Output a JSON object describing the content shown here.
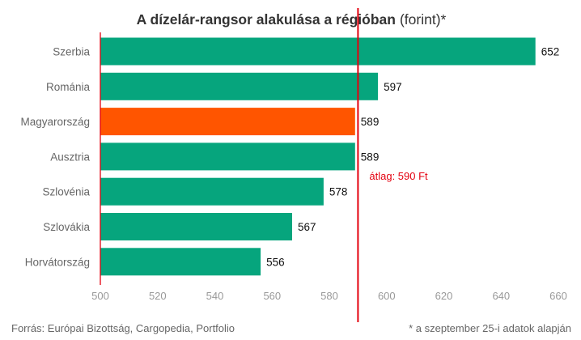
{
  "chart_data": {
    "type": "bar",
    "orientation": "horizontal",
    "title": "A dízelár-rangsor alakulása a régióban",
    "title_unit": "(forint)*",
    "categories": [
      "Szerbia",
      "Románia",
      "Magyarország",
      "Ausztria",
      "Szlovénia",
      "Szlovákia",
      "Horvátország"
    ],
    "values": [
      652,
      597,
      589,
      589,
      578,
      567,
      556
    ],
    "value_labels": [
      "652",
      "597",
      "589",
      "589",
      "578",
      "567",
      "556"
    ],
    "highlight_category": "Magyarország",
    "xlim": [
      500,
      660
    ],
    "xticks": [
      "500",
      "520",
      "540",
      "560",
      "580",
      "600",
      "620",
      "640",
      "660"
    ],
    "xlabel": "",
    "ylabel": "",
    "grid": false,
    "average": {
      "value": 590,
      "label": "átlag: 590 Ft"
    },
    "colors": {
      "bar": "#06a57d",
      "highlight": "#ff5500",
      "average_line": "#e4000f",
      "axis": "#e4000f"
    }
  },
  "footer": {
    "source": "Forrás: Európai Bizottság, Cargopedia, Portfolio",
    "note": "* a szeptember 25-i adatok alapján"
  }
}
